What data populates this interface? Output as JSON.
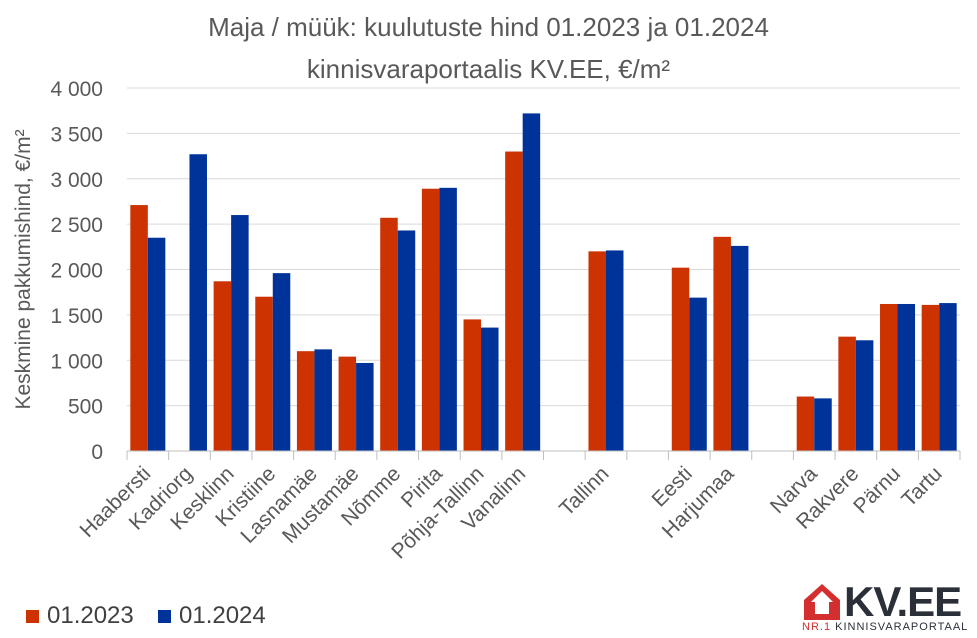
{
  "chart_data": {
    "type": "bar",
    "title_line1": "Maja / müük: kuulutuste hind 01.2023 ja 01.2024",
    "title_line2": "kinnisvaraportaalis KV.EE, €/m²",
    "ylabel": "Keskmine pakkumishind, €/m²",
    "ylim": [
      0,
      4000
    ],
    "yticks": [
      0,
      500,
      1000,
      1500,
      2000,
      2500,
      3000,
      3500,
      4000
    ],
    "ytick_labels": [
      "0",
      "500",
      "1 000",
      "1 500",
      "2 000",
      "2 500",
      "3 000",
      "3 500",
      "4 000"
    ],
    "categories": [
      "Haabersti",
      "Kadriorg",
      "Kesklinn",
      "Kristiine",
      "Lasnamäe",
      "Mustamäe",
      "Nõmme",
      "Pirita",
      "Põhja-Tallinn",
      "Vanalinn",
      "",
      "Tallinn",
      "",
      "Eesti",
      "Harjumaa",
      "",
      "Narva",
      "Rakvere",
      "Pärnu",
      "Tartu"
    ],
    "series": [
      {
        "name": "01.2023",
        "color": "#cc3300",
        "values": [
          2710,
          null,
          1870,
          1700,
          1100,
          1040,
          2570,
          2890,
          1450,
          3300,
          null,
          2200,
          null,
          2020,
          2360,
          null,
          600,
          1260,
          1620,
          1610
        ]
      },
      {
        "name": "01.2024",
        "color": "#003399",
        "values": [
          2350,
          3270,
          2600,
          1960,
          1120,
          970,
          2430,
          2900,
          1360,
          3720,
          null,
          2210,
          null,
          1690,
          2260,
          null,
          580,
          1220,
          1620,
          1630
        ]
      }
    ],
    "grid": true,
    "legend_position": "bottom-left"
  },
  "logo": {
    "name": "KV.EE",
    "tagline_prefix": "NR.1",
    "tagline": "KINNISVARAPORTAAL",
    "colors": {
      "red": "#d32f2f",
      "dark": "#2a2f38"
    }
  }
}
